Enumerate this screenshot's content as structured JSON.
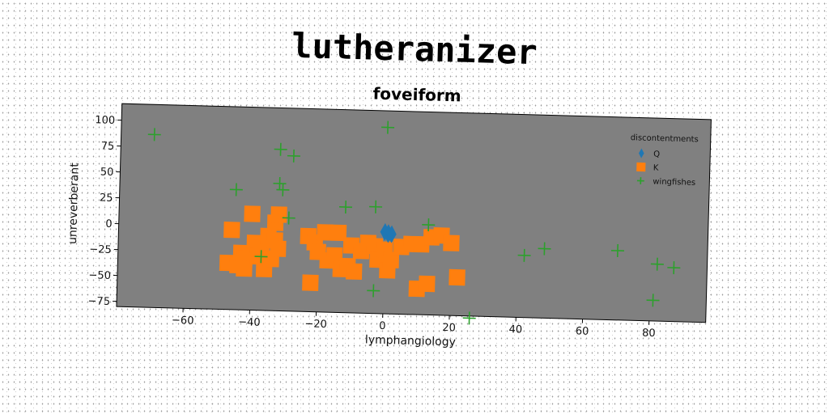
{
  "title": "lutheranizer",
  "chart_data": {
    "type": "scatter",
    "title": "foveiform",
    "xlabel": "lymphangiology",
    "ylabel": "unreverberant",
    "xlim": [
      -80,
      97
    ],
    "ylim": [
      -80,
      116
    ],
    "xticks": [
      -60,
      -40,
      -20,
      0,
      20,
      40,
      60,
      80
    ],
    "yticks": [
      100,
      75,
      50,
      25,
      0,
      -25,
      -50,
      -75
    ],
    "grid": false,
    "legend": {
      "title": "discontentments",
      "placement": "top-right"
    },
    "colors": {
      "axes_bg": "#808080",
      "Q": "#1f77b4",
      "K": "#ff7f0e",
      "wingfishes": "#2ca02c"
    },
    "series": [
      {
        "name": "Q",
        "marker": "diamond",
        "points": [
          [
            1,
            -2
          ],
          [
            1,
            -3
          ],
          [
            0,
            -1
          ],
          [
            2,
            -3
          ]
        ]
      },
      {
        "name": "K",
        "marker": "square",
        "points": [
          [
            -47,
            -35
          ],
          [
            -46,
            -3
          ],
          [
            -44,
            -37
          ],
          [
            -43,
            -25
          ],
          [
            -42,
            -30
          ],
          [
            -42,
            -40
          ],
          [
            -40,
            13
          ],
          [
            -39,
            -15
          ],
          [
            -38,
            -28
          ],
          [
            -37,
            -20
          ],
          [
            -36,
            -40
          ],
          [
            -35,
            -8
          ],
          [
            -34,
            -30
          ],
          [
            -33,
            -12
          ],
          [
            -33,
            5
          ],
          [
            -32,
            -20
          ],
          [
            -32,
            13
          ],
          [
            -23,
            -7
          ],
          [
            -22,
            -52
          ],
          [
            -21,
            -13
          ],
          [
            -20,
            -22
          ],
          [
            -18,
            -3
          ],
          [
            -17,
            -30
          ],
          [
            -15,
            -25
          ],
          [
            -14,
            -3
          ],
          [
            -13,
            -38
          ],
          [
            -11,
            -35
          ],
          [
            -10,
            -15
          ],
          [
            -9,
            -40
          ],
          [
            -7,
            -20
          ],
          [
            -5,
            -12
          ],
          [
            -3,
            -15
          ],
          [
            -2,
            -28
          ],
          [
            0,
            -18
          ],
          [
            1,
            -38
          ],
          [
            2,
            -28
          ],
          [
            5,
            -15
          ],
          [
            8,
            -12
          ],
          [
            10,
            -55
          ],
          [
            11,
            -12
          ],
          [
            13,
            -50
          ],
          [
            14,
            -5
          ],
          [
            17,
            -3
          ],
          [
            20,
            -10
          ],
          [
            22,
            -43
          ]
        ]
      },
      {
        "name": "wingfishes",
        "marker": "plus",
        "points": [
          [
            -70,
            87
          ],
          [
            -45,
            36
          ],
          [
            -37,
            -28
          ],
          [
            -32,
            76
          ],
          [
            -32,
            43
          ],
          [
            -31,
            37
          ],
          [
            -29,
            10
          ],
          [
            -28,
            70
          ],
          [
            -12,
            22
          ],
          [
            -3,
            23
          ],
          [
            -3,
            -58
          ],
          [
            0,
            100
          ],
          [
            13,
            7
          ],
          [
            26,
            -82
          ],
          [
            42,
            -20
          ],
          [
            48,
            -13
          ],
          [
            70,
            -13
          ],
          [
            81,
            -60
          ],
          [
            82,
            -25
          ],
          [
            87,
            -28
          ]
        ]
      }
    ]
  }
}
